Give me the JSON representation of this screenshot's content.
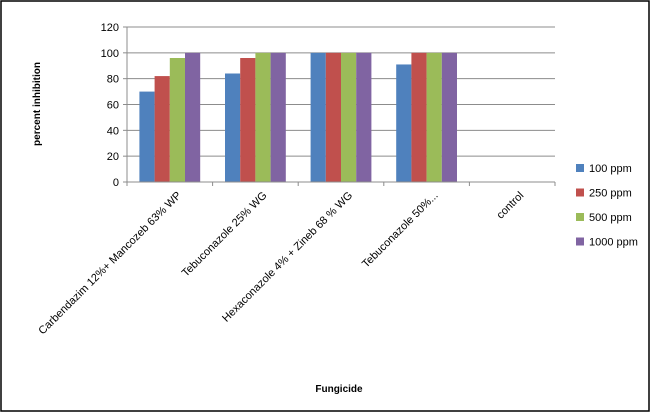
{
  "chart_data": {
    "type": "bar",
    "categories": [
      "Carbendazim 12%+ Mancozeb 63% WP",
      "Tebuconazole 25% WG",
      "Hexaconazole 4% + Zineb 68 % WG",
      "Tebuconazole 50%...",
      "control"
    ],
    "series": [
      {
        "name": "100 ppm",
        "color": "#4F81BD",
        "values": [
          70,
          84,
          100,
          91,
          0
        ]
      },
      {
        "name": "250 ppm",
        "color": "#C0504D",
        "values": [
          82,
          96,
          100,
          100,
          0
        ]
      },
      {
        "name": "500 ppm",
        "color": "#9BBB59",
        "values": [
          96,
          100,
          100,
          100,
          0
        ]
      },
      {
        "name": "1000 ppm",
        "color": "#8064A2",
        "values": [
          100,
          100,
          100,
          100,
          0
        ]
      }
    ],
    "xlabel": "Fungicide",
    "ylabel": "percent inhibition",
    "ylim": [
      0,
      120
    ],
    "yticks": [
      0,
      20,
      40,
      60,
      80,
      100,
      120
    ],
    "grid": true,
    "legend_position": "right"
  }
}
